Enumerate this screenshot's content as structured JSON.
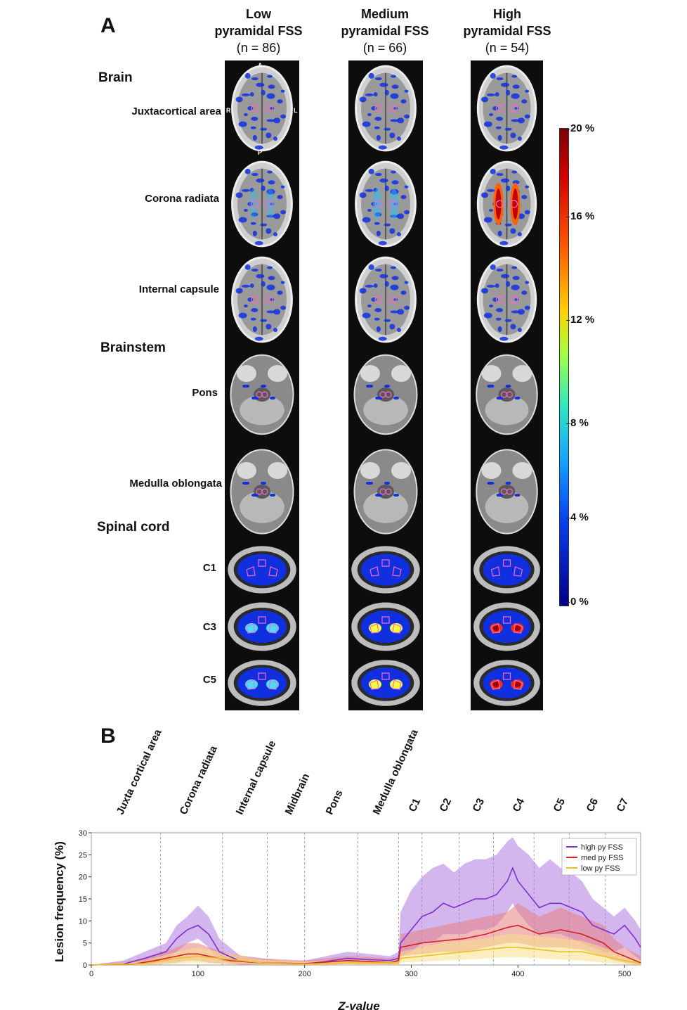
{
  "panel_a": {
    "letter": "A",
    "columns": [
      {
        "title_1": "Low",
        "title_2": "pyramidal FSS",
        "n": "(n = 86)"
      },
      {
        "title_1": "Medium",
        "title_2": "pyramidal FSS",
        "n": "(n = 66)"
      },
      {
        "title_1": "High",
        "title_2": "pyramidal FSS",
        "n": "(n = 54)"
      }
    ],
    "sections": {
      "brain": "Brain",
      "brainstem": "Brainstem",
      "spinal_cord": "Spinal cord"
    },
    "rows": [
      "Juxtacortical area",
      "Corona radiata",
      "Internal capsule",
      "Pons",
      "Medulla oblongata",
      "C1",
      "C3",
      "C5"
    ],
    "orientation": {
      "anterior": "A",
      "posterior": "P",
      "right": "R",
      "left": "L"
    },
    "colorbar": {
      "ticks": [
        "20 %",
        "16 %",
        "12 %",
        "8 %",
        "4 %",
        "0 %"
      ]
    }
  },
  "panel_b": {
    "letter": "B",
    "region_labels": [
      "Juxta cortical area",
      "Corona radiata",
      "Internal capsule",
      "Midbrain",
      "Pons",
      "Medulla oblongata",
      "C1",
      "C2",
      "C3",
      "C4",
      "C5",
      "C6",
      "C7"
    ]
  },
  "chart_data": {
    "type": "line",
    "xlabel": "Z-value",
    "ylabel": "Lesion frequency (%)",
    "xlim": [
      0,
      515
    ],
    "ylim": [
      0,
      30
    ],
    "xticks": [
      0,
      100,
      200,
      300,
      400,
      500
    ],
    "yticks": [
      0,
      5,
      10,
      15,
      20,
      25,
      30
    ],
    "boundaries": [
      65,
      123,
      165,
      200,
      250,
      288,
      310,
      345,
      377,
      415,
      448,
      482
    ],
    "legend_position": "top-right",
    "series": [
      {
        "name": "high py FSS",
        "color": "#7b2fd6",
        "band_color": "#b07ae0",
        "x": [
          0,
          30,
          50,
          70,
          80,
          90,
          100,
          110,
          120,
          140,
          160,
          180,
          200,
          220,
          240,
          260,
          280,
          288,
          290,
          300,
          310,
          320,
          330,
          340,
          350,
          360,
          370,
          380,
          390,
          395,
          400,
          410,
          420,
          430,
          440,
          450,
          460,
          470,
          480,
          490,
          500,
          510,
          515
        ],
        "y": [
          0,
          0.2,
          1.5,
          3,
          6,
          8,
          9,
          7,
          3,
          0.8,
          0.5,
          0.3,
          0.2,
          0.8,
          1.5,
          1.2,
          1,
          1.5,
          5,
          8,
          11,
          12,
          14,
          13,
          14,
          15,
          15,
          16,
          19,
          22,
          19,
          16,
          13,
          14,
          14,
          13,
          12,
          9,
          8,
          7,
          9,
          6,
          4
        ],
        "upper": [
          0,
          1,
          3,
          5,
          9,
          11,
          13.5,
          11,
          6,
          2,
          1.5,
          1,
          1,
          2,
          3,
          2.5,
          2,
          3,
          12,
          17,
          20,
          22,
          23,
          21,
          23,
          24,
          24,
          25,
          28,
          29,
          27,
          25,
          22,
          24,
          22,
          21,
          19,
          15,
          13,
          11,
          13,
          10,
          8
        ],
        "lower": [
          0,
          0,
          0.3,
          1,
          3,
          5,
          6,
          4,
          1,
          0,
          0,
          0,
          0,
          0,
          0.3,
          0.2,
          0.2,
          0.5,
          2,
          3,
          5,
          5,
          7,
          7,
          7,
          8,
          8,
          9,
          12,
          14,
          12,
          9,
          7,
          7,
          7,
          6,
          5,
          4,
          3,
          3,
          4,
          2,
          1
        ]
      },
      {
        "name": "med py FSS",
        "color": "#d42020",
        "band_color": "#e88080",
        "x": [
          0,
          40,
          60,
          80,
          90,
          100,
          110,
          130,
          160,
          200,
          240,
          260,
          280,
          288,
          290,
          310,
          330,
          350,
          370,
          390,
          400,
          420,
          440,
          460,
          480,
          490,
          500,
          515
        ],
        "y": [
          0,
          0.2,
          1,
          2,
          2.5,
          2.5,
          2,
          1,
          0.5,
          0.3,
          1,
          0.8,
          0.5,
          1,
          4,
          5,
          5.5,
          6,
          7,
          8.5,
          9,
          7,
          8,
          7,
          5,
          3,
          2,
          0.5
        ],
        "upper": [
          0,
          1,
          2.5,
          4,
          5,
          5,
          4,
          2.5,
          1.5,
          1,
          2,
          1.8,
          1.5,
          2,
          7,
          8,
          9,
          10,
          11,
          12,
          14,
          11,
          13,
          11,
          9,
          6,
          4,
          2
        ],
        "lower": [
          0,
          0,
          0.2,
          0.5,
          1,
          1,
          0.5,
          0.2,
          0,
          0,
          0.2,
          0.2,
          0,
          0.2,
          2,
          2.5,
          3,
          3,
          4,
          5,
          5,
          4,
          4,
          3.5,
          2,
          1,
          0.5,
          0
        ]
      },
      {
        "name": "low py FSS",
        "color": "#f0c020",
        "band_color": "#f8e08a",
        "x": [
          0,
          50,
          80,
          100,
          120,
          160,
          200,
          240,
          280,
          288,
          290,
          310,
          330,
          350,
          370,
          390,
          400,
          420,
          440,
          460,
          480,
          500,
          515
        ],
        "y": [
          0,
          0.3,
          1.5,
          2,
          1.5,
          0.5,
          0.2,
          0.5,
          0.5,
          0.5,
          1.5,
          2,
          2.5,
          3,
          3.5,
          4,
          4,
          3.5,
          3,
          3,
          2,
          1,
          0.3
        ],
        "upper": [
          0,
          1,
          3,
          4,
          3,
          1.2,
          0.8,
          1.2,
          1.2,
          1.2,
          3,
          4,
          5,
          5.5,
          6,
          7,
          7,
          6.5,
          6,
          5.5,
          4,
          2,
          1
        ],
        "lower": [
          0,
          0,
          0.3,
          0.5,
          0.3,
          0,
          0,
          0,
          0,
          0,
          0.5,
          0.8,
          1,
          1.2,
          1.5,
          1.8,
          1.8,
          1.5,
          1.2,
          1,
          0.5,
          0.2,
          0
        ]
      }
    ]
  }
}
